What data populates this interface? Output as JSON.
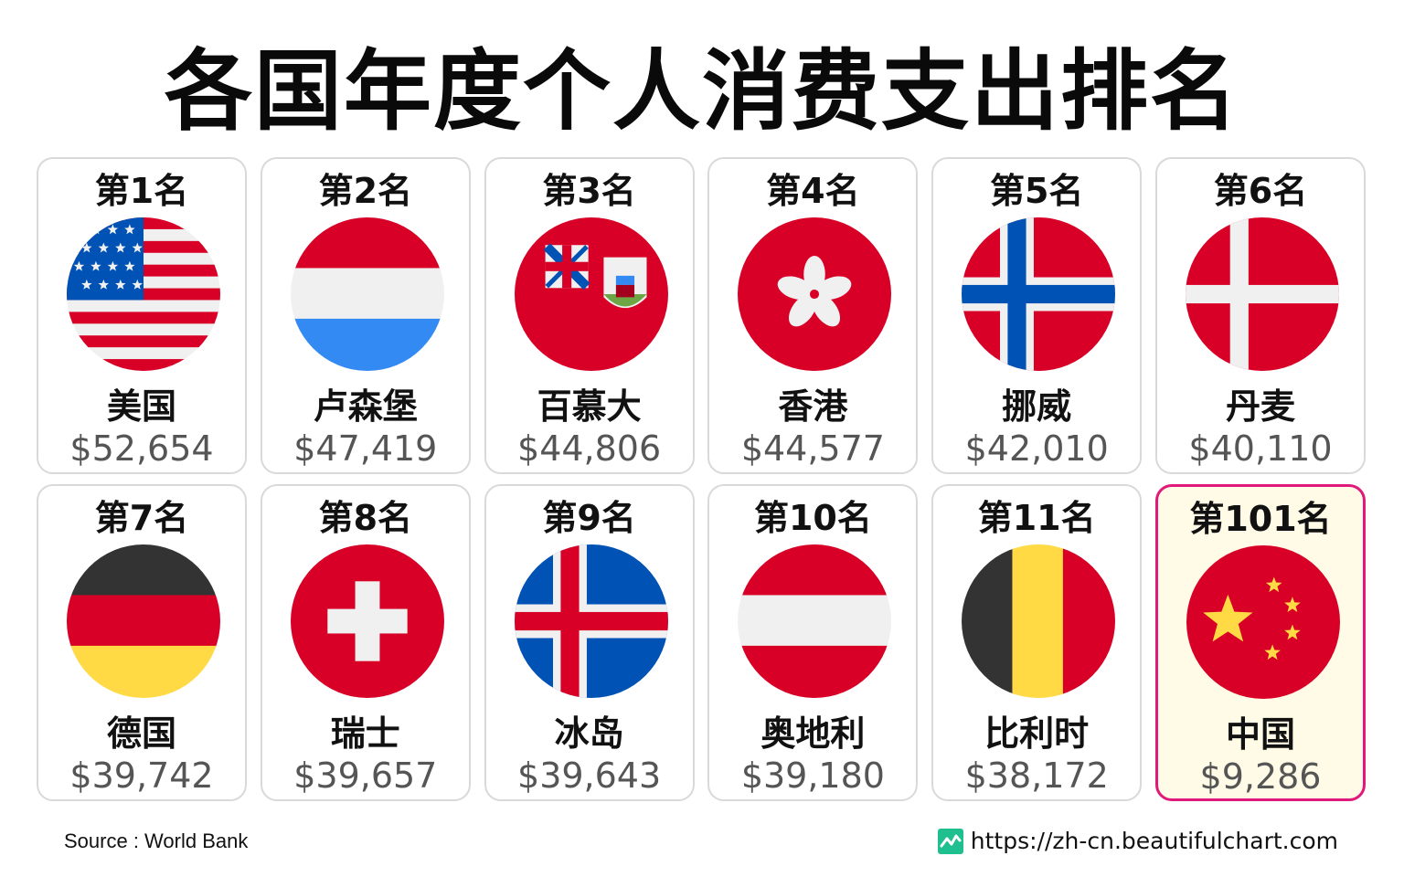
{
  "title": "各国年度个人消费支出排名",
  "source": "Source : World Bank",
  "site": "https://zh-cn.beautifulchart.com",
  "icons": {
    "site": "chart-logo-icon"
  },
  "colors": {
    "highlight_border": "#e0197a",
    "highlight_bg": "#fffbe6",
    "card_border": "#d9d9d9",
    "value_text": "#555555"
  },
  "chart_data": {
    "type": "table",
    "title": "各国年度个人消费支出排名",
    "unit": "$",
    "items": [
      {
        "rank": "第1名",
        "country": "美国",
        "value": 52654,
        "display": "$52,654",
        "flag": "us"
      },
      {
        "rank": "第2名",
        "country": "卢森堡",
        "value": 47419,
        "display": "$47,419",
        "flag": "lu"
      },
      {
        "rank": "第3名",
        "country": "百慕大",
        "value": 44806,
        "display": "$44,806",
        "flag": "bm"
      },
      {
        "rank": "第4名",
        "country": "香港",
        "value": 44577,
        "display": "$44,577",
        "flag": "hk"
      },
      {
        "rank": "第5名",
        "country": "挪威",
        "value": 42010,
        "display": "$42,010",
        "flag": "no"
      },
      {
        "rank": "第6名",
        "country": "丹麦",
        "value": 40110,
        "display": "$40,110",
        "flag": "dk"
      },
      {
        "rank": "第7名",
        "country": "德国",
        "value": 39742,
        "display": "$39,742",
        "flag": "de"
      },
      {
        "rank": "第8名",
        "country": "瑞士",
        "value": 39657,
        "display": "$39,657",
        "flag": "ch"
      },
      {
        "rank": "第9名",
        "country": "冰岛",
        "value": 39643,
        "display": "$39,643",
        "flag": "is"
      },
      {
        "rank": "第10名",
        "country": "奥地利",
        "value": 39180,
        "display": "$39,180",
        "flag": "at"
      },
      {
        "rank": "第11名",
        "country": "比利时",
        "value": 38172,
        "display": "$38,172",
        "flag": "be"
      },
      {
        "rank": "第101名",
        "country": "中国",
        "value": 9286,
        "display": "$9,286",
        "flag": "cn",
        "highlighted": true
      }
    ]
  }
}
